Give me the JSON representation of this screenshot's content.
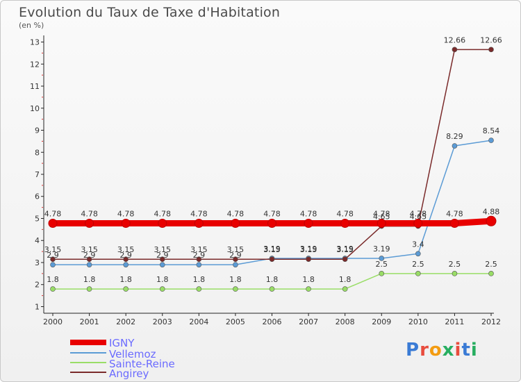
{
  "header": {
    "title": "Evolution du Taux de Taxe d'Habitation",
    "unit": "(en %)"
  },
  "brand": {
    "text": "Proxiti"
  },
  "chart_data": {
    "type": "line",
    "title": "Evolution du Taux de Taxe d'Habitation",
    "ylabel": "(en %)",
    "xlabel": "",
    "x": [
      "2000",
      "2001",
      "2002",
      "2003",
      "2004",
      "2005",
      "2006",
      "2007",
      "2008",
      "2009",
      "2010",
      "2011",
      "2012"
    ],
    "ylim": [
      0.7,
      13.3
    ],
    "yticks": [
      "1",
      "2",
      "3",
      "4",
      "5",
      "6",
      "7",
      "8",
      "9",
      "10",
      "11",
      "12",
      "13"
    ],
    "legend": "bottom-left",
    "series": [
      {
        "name": "IGNY",
        "color": "#e80000",
        "values": [
          4.78,
          4.78,
          4.78,
          4.78,
          4.78,
          4.78,
          4.78,
          4.78,
          4.78,
          4.78,
          4.78,
          4.78,
          4.88
        ],
        "labels": [
          "4.78",
          "4.78",
          "4.78",
          "4.78",
          "4.78",
          "4.78",
          "4.78",
          "4.78",
          "4.78",
          "4.78",
          "4.78",
          "4.78",
          "4.88"
        ]
      },
      {
        "name": "Vellemoz",
        "color": "#5b9bd5",
        "values": [
          2.9,
          2.9,
          2.9,
          2.9,
          2.9,
          2.9,
          3.19,
          3.19,
          3.19,
          3.19,
          3.4,
          8.29,
          8.54
        ],
        "labels": [
          "2.9",
          "2.9",
          "2.9",
          "2.9",
          "2.9",
          "2.9",
          "3.19",
          "3.19",
          "3.19",
          "3.19",
          "3.4",
          "8.29",
          "8.54"
        ]
      },
      {
        "name": "Sainte-Reine",
        "color": "#99dd66",
        "values": [
          1.8,
          1.8,
          1.8,
          1.8,
          1.8,
          1.8,
          1.8,
          1.8,
          1.8,
          2.5,
          2.5,
          2.5,
          2.5
        ],
        "labels": [
          "1.8",
          "1.8",
          "1.8",
          "1.8",
          "1.8",
          "1.8",
          "1.8",
          "1.8",
          "1.8",
          "2.5",
          "2.5",
          "2.5",
          "2.5"
        ]
      },
      {
        "name": "Angirey",
        "color": "#7a2a2a",
        "values": [
          3.15,
          3.15,
          3.15,
          3.15,
          3.15,
          3.15,
          3.15,
          3.15,
          3.15,
          4.65,
          4.65,
          12.66,
          12.66
        ],
        "labels": [
          "3.15",
          "3.15",
          "3.15",
          "3.15",
          "3.15",
          "3.15",
          "3.15",
          "3.15",
          "3.15",
          "4.65",
          "4.65",
          "12.66",
          "12.66"
        ]
      }
    ]
  }
}
